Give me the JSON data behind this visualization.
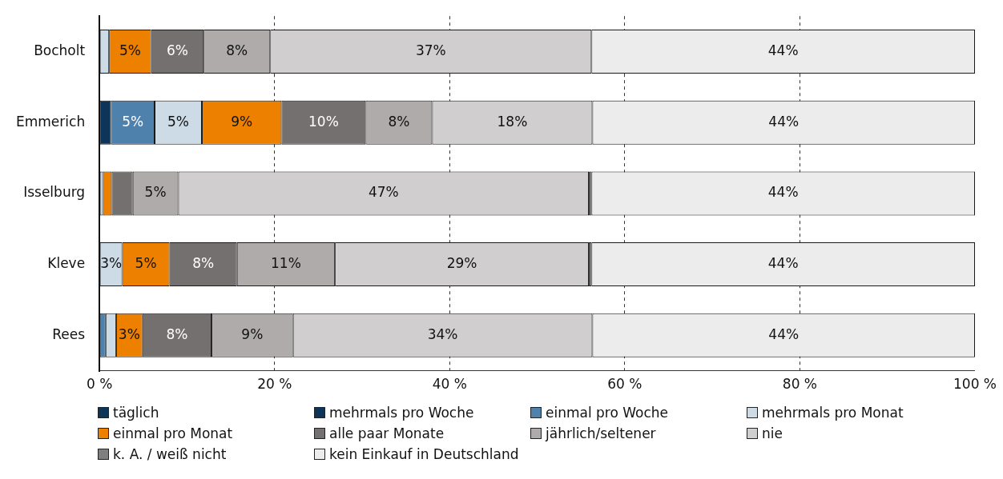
{
  "chart_data": {
    "type": "bar",
    "orientation": "horizontal",
    "stacked": true,
    "grid": "x",
    "legend": "bottom",
    "categories": [
      "Bocholt",
      "Emmerich",
      "Isselburg",
      "Kleve",
      "Rees"
    ],
    "xlim": [
      0,
      100
    ],
    "xticks": [
      {
        "value": 0,
        "label": "0 %"
      },
      {
        "value": 20,
        "label": "20 %"
      },
      {
        "value": 40,
        "label": "40 %"
      },
      {
        "value": 60,
        "label": "60 %"
      },
      {
        "value": 80,
        "label": "80 %"
      },
      {
        "value": 100,
        "label": "100 %"
      }
    ],
    "series": [
      {
        "name": "täglich",
        "color": "#0d3559",
        "values": [
          0,
          0,
          0,
          0,
          0
        ]
      },
      {
        "name": "mehrmals pro Woche",
        "color": "#0d3559",
        "values": [
          0,
          1.3,
          0,
          0,
          0
        ],
        "value_labels": [
          null,
          null,
          null,
          null,
          null
        ]
      },
      {
        "name": "einmal pro Woche",
        "color": "#4f81ad",
        "values": [
          0,
          5.0,
          0,
          0,
          0.7
        ],
        "value_labels": [
          null,
          "5%",
          null,
          null,
          null
        ]
      },
      {
        "name": "mehrmals pro Monat",
        "color": "#cddbe6",
        "values": [
          1.1,
          5.4,
          0.4,
          2.6,
          1.2
        ],
        "value_labels": [
          null,
          "5%",
          null,
          "3%",
          null
        ]
      },
      {
        "name": "einmal pro Monat",
        "color": "#ee8000",
        "values": [
          4.8,
          9.1,
          1.0,
          5.4,
          3.0
        ],
        "value_labels": [
          "5%",
          "9%",
          null,
          "5%",
          "3%"
        ]
      },
      {
        "name": "alle paar Monate",
        "color": "#747070",
        "values": [
          6.0,
          9.6,
          2.4,
          7.7,
          7.9
        ],
        "value_labels": [
          "6%",
          "10%",
          null,
          "8%",
          "8%"
        ]
      },
      {
        "name": "jährlich/seltener",
        "color": "#afabab",
        "values": [
          7.6,
          7.6,
          5.2,
          11.2,
          9.3
        ],
        "value_labels": [
          "8%",
          "8%",
          "5%",
          "11%",
          "9%"
        ]
      },
      {
        "name": "nie",
        "color": "#d0cece",
        "values": [
          36.7,
          18.3,
          46.9,
          29.0,
          34.2
        ],
        "value_labels": [
          "37%",
          "18%",
          "47%",
          "29%",
          "34%"
        ]
      },
      {
        "name": "k. A. / weiß nicht",
        "color": "#7f7f7f",
        "values": [
          0,
          0,
          0.3,
          0.3,
          0
        ]
      },
      {
        "name": "kein Einkauf in Deutschland",
        "color": "#ececec",
        "values": [
          43.8,
          43.7,
          43.8,
          43.8,
          43.7
        ],
        "value_labels": [
          "44%",
          "44%",
          "44%",
          "44%",
          "44%"
        ]
      }
    ]
  }
}
